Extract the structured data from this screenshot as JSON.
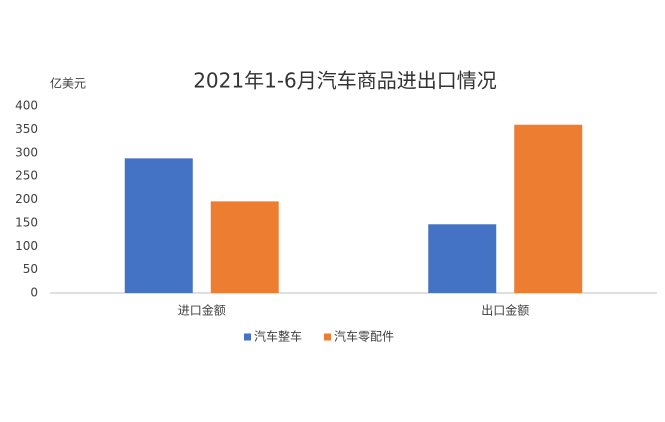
{
  "chart_data": {
    "type": "bar",
    "title": "2021年1-6月汽车商品进出口情况",
    "y_label": "亿美元",
    "categories": [
      "进口金额",
      "出口金额"
    ],
    "series": [
      {
        "name": "汽车整车",
        "color": "#4472c4",
        "values": [
          288,
          147
        ]
      },
      {
        "name": "汽车零配件",
        "color": "#ed7d31",
        "values": [
          196,
          360
        ]
      }
    ],
    "ylim": [
      0,
      400
    ],
    "yticks": [
      0,
      50,
      100,
      150,
      200,
      250,
      300,
      350,
      400
    ],
    "grid": false,
    "legend": "bottom"
  }
}
